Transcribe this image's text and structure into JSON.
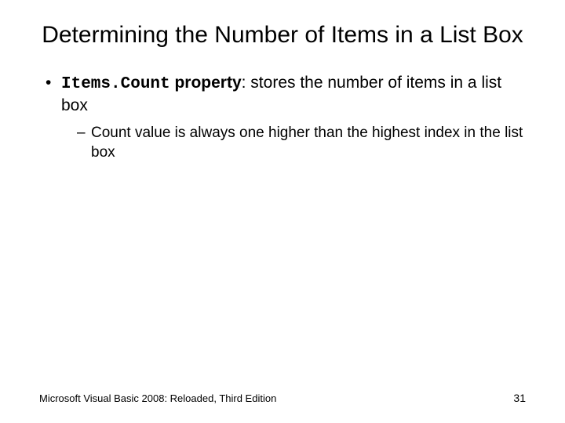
{
  "title": "Determining the Number of Items in a List Box",
  "bullet1": {
    "code": "Items.Count",
    "boldword": " property",
    "rest": ": stores the number of items in a list box"
  },
  "bullet2": "Count value is always one higher than the highest index in the list box",
  "footer": {
    "source": "Microsoft Visual Basic 2008: Reloaded, Third Edition",
    "page": "31"
  }
}
